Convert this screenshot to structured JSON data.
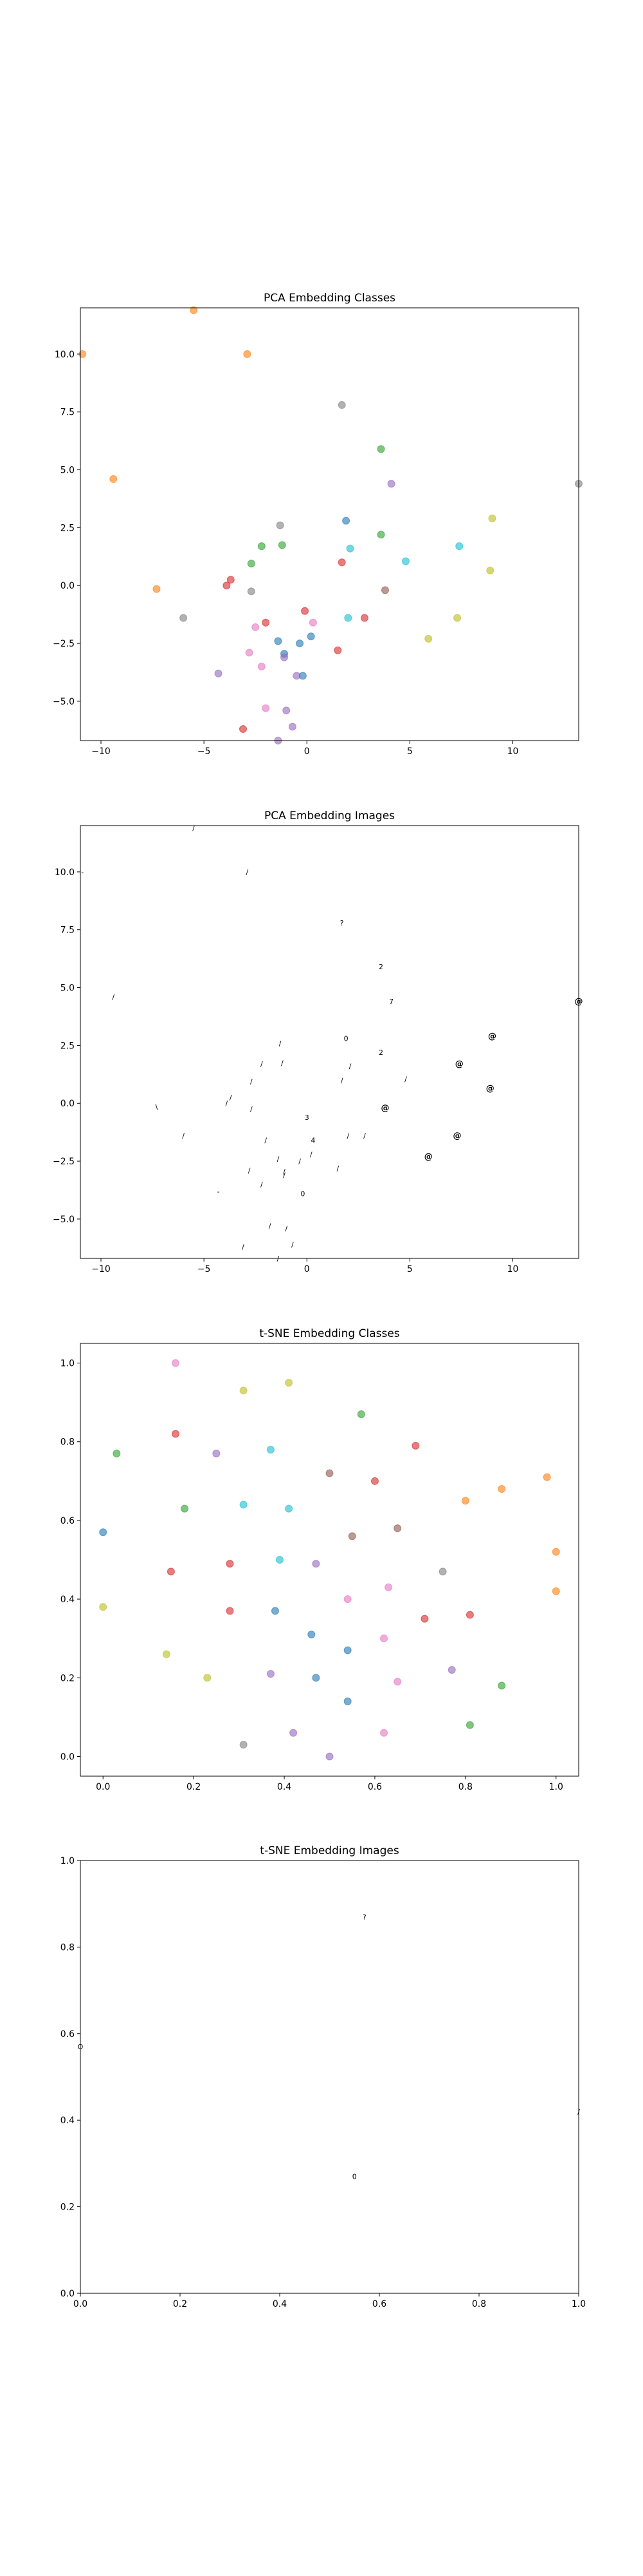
{
  "palette": [
    "#1f77b4",
    "#ff7f0e",
    "#2ca02c",
    "#d62728",
    "#9467bd",
    "#8c564b",
    "#e377c2",
    "#7f7f7f",
    "#bcbd22",
    "#17becf"
  ],
  "chart_data": [
    {
      "type": "scatter",
      "title": "PCA Embedding Classes",
      "xlim": [
        -11,
        13.2
      ],
      "ylim": [
        -6.7,
        12
      ],
      "xticks": [
        -10,
        -5,
        0,
        5,
        10
      ],
      "yticks": [
        -5.0,
        -2.5,
        0.0,
        2.5,
        5.0,
        7.5,
        10.0
      ],
      "ytick_labels": [
        "−5.0",
        "−2.5",
        "0.0",
        "2.5",
        "5.0",
        "7.5",
        "10.0"
      ],
      "xtick_labels": [
        "−10",
        "−5",
        "0",
        "5",
        "10"
      ],
      "points": [
        {
          "x": -5.5,
          "y": 11.9,
          "c": 1
        },
        {
          "x": -2.9,
          "y": 10.0,
          "c": 1
        },
        {
          "x": -10.9,
          "y": 10.0,
          "c": 1
        },
        {
          "x": -9.4,
          "y": 4.6,
          "c": 1
        },
        {
          "x": -7.3,
          "y": -0.15,
          "c": 1
        },
        {
          "x": 1.7,
          "y": 7.8,
          "c": 7
        },
        {
          "x": 3.6,
          "y": 5.9,
          "c": 2
        },
        {
          "x": 4.1,
          "y": 4.4,
          "c": 4
        },
        {
          "x": 13.2,
          "y": 4.4,
          "c": 7
        },
        {
          "x": 9.0,
          "y": 2.9,
          "c": 8
        },
        {
          "x": 1.9,
          "y": 2.8,
          "c": 0
        },
        {
          "x": -1.3,
          "y": 2.6,
          "c": 7
        },
        {
          "x": 3.6,
          "y": 2.2,
          "c": 2
        },
        {
          "x": -2.2,
          "y": 1.7,
          "c": 2
        },
        {
          "x": -1.2,
          "y": 1.75,
          "c": 2
        },
        {
          "x": 7.4,
          "y": 1.7,
          "c": 9
        },
        {
          "x": 2.1,
          "y": 1.6,
          "c": 9
        },
        {
          "x": 4.8,
          "y": 1.05,
          "c": 9
        },
        {
          "x": 1.7,
          "y": 1.0,
          "c": 3
        },
        {
          "x": -2.7,
          "y": 0.95,
          "c": 2
        },
        {
          "x": 8.9,
          "y": 0.65,
          "c": 8
        },
        {
          "x": -3.7,
          "y": 0.25,
          "c": 3
        },
        {
          "x": -3.9,
          "y": 0.0,
          "c": 3
        },
        {
          "x": 3.8,
          "y": -0.2,
          "c": 5
        },
        {
          "x": -2.7,
          "y": -0.25,
          "c": 7
        },
        {
          "x": -0.1,
          "y": -1.1,
          "c": 3
        },
        {
          "x": -6.0,
          "y": -1.4,
          "c": 7
        },
        {
          "x": 2.0,
          "y": -1.4,
          "c": 9
        },
        {
          "x": 2.8,
          "y": -1.4,
          "c": 3
        },
        {
          "x": 7.3,
          "y": -1.4,
          "c": 8
        },
        {
          "x": -2.0,
          "y": -1.6,
          "c": 3
        },
        {
          "x": 0.3,
          "y": -1.6,
          "c": 6
        },
        {
          "x": -2.5,
          "y": -1.8,
          "c": 6
        },
        {
          "x": 0.2,
          "y": -2.2,
          "c": 0
        },
        {
          "x": -0.35,
          "y": -2.5,
          "c": 0
        },
        {
          "x": 5.9,
          "y": -2.3,
          "c": 8
        },
        {
          "x": -1.4,
          "y": -2.4,
          "c": 0
        },
        {
          "x": -1.1,
          "y": -2.95,
          "c": 0
        },
        {
          "x": 1.5,
          "y": -2.8,
          "c": 3
        },
        {
          "x": -2.8,
          "y": -2.9,
          "c": 6
        },
        {
          "x": -1.1,
          "y": -3.1,
          "c": 4
        },
        {
          "x": -2.2,
          "y": -3.5,
          "c": 6
        },
        {
          "x": -4.3,
          "y": -3.8,
          "c": 4
        },
        {
          "x": -0.5,
          "y": -3.9,
          "c": 4
        },
        {
          "x": -0.2,
          "y": -3.9,
          "c": 0
        },
        {
          "x": -2.0,
          "y": -5.3,
          "c": 6
        },
        {
          "x": -1.0,
          "y": -5.4,
          "c": 4
        },
        {
          "x": -0.7,
          "y": -6.1,
          "c": 4
        },
        {
          "x": -3.1,
          "y": -6.2,
          "c": 3
        },
        {
          "x": -1.4,
          "y": -6.7,
          "c": 4
        }
      ]
    },
    {
      "type": "scatter",
      "title": "PCA Embedding Images",
      "xlim": [
        -11,
        13.2
      ],
      "ylim": [
        -6.7,
        12
      ],
      "xticks": [
        -10,
        -5,
        0,
        5,
        10
      ],
      "yticks": [
        -5.0,
        -2.5,
        0.0,
        2.5,
        5.0,
        7.5,
        10.0
      ],
      "ytick_labels": [
        "−5.0",
        "−2.5",
        "0.0",
        "2.5",
        "5.0",
        "7.5",
        "10.0"
      ],
      "xtick_labels": [
        "−10",
        "−5",
        "0",
        "5",
        "10"
      ],
      "glyphs": [
        {
          "x": -5.5,
          "y": 11.9,
          "t": "/"
        },
        {
          "x": -2.9,
          "y": 10.0,
          "t": "/"
        },
        {
          "x": -10.9,
          "y": 10.0,
          "t": "-"
        },
        {
          "x": -9.4,
          "y": 4.6,
          "t": "/"
        },
        {
          "x": -7.3,
          "y": -0.15,
          "t": "\\"
        },
        {
          "x": 1.7,
          "y": 7.8,
          "t": "?"
        },
        {
          "x": 3.6,
          "y": 5.9,
          "t": "2"
        },
        {
          "x": 4.1,
          "y": 4.4,
          "t": "7"
        },
        {
          "x": 13.2,
          "y": 4.4,
          "t": "@"
        },
        {
          "x": 9.0,
          "y": 2.9,
          "t": "@"
        },
        {
          "x": 1.9,
          "y": 2.8,
          "t": "0"
        },
        {
          "x": -1.3,
          "y": 2.6,
          "t": "/"
        },
        {
          "x": 3.6,
          "y": 2.2,
          "t": "2"
        },
        {
          "x": -2.2,
          "y": 1.7,
          "t": "/"
        },
        {
          "x": -1.2,
          "y": 1.75,
          "t": "/"
        },
        {
          "x": 7.4,
          "y": 1.7,
          "t": "@"
        },
        {
          "x": 2.1,
          "y": 1.6,
          "t": "/"
        },
        {
          "x": 4.8,
          "y": 1.05,
          "t": "/"
        },
        {
          "x": 1.7,
          "y": 1.0,
          "t": "/"
        },
        {
          "x": -2.7,
          "y": 0.95,
          "t": "/"
        },
        {
          "x": 8.9,
          "y": 0.65,
          "t": "@"
        },
        {
          "x": -3.7,
          "y": 0.25,
          "t": "/"
        },
        {
          "x": -3.9,
          "y": 0.0,
          "t": "/"
        },
        {
          "x": 3.8,
          "y": -0.2,
          "t": "@"
        },
        {
          "x": -2.7,
          "y": -0.25,
          "t": "/"
        },
        {
          "x": 0.0,
          "y": -0.6,
          "t": "3"
        },
        {
          "x": -6.0,
          "y": -1.4,
          "t": "/"
        },
        {
          "x": 2.0,
          "y": -1.4,
          "t": "/"
        },
        {
          "x": 2.8,
          "y": -1.4,
          "t": "/"
        },
        {
          "x": 7.3,
          "y": -1.4,
          "t": "@"
        },
        {
          "x": -2.0,
          "y": -1.6,
          "t": "/"
        },
        {
          "x": 0.3,
          "y": -1.6,
          "t": "4"
        },
        {
          "x": 0.2,
          "y": -2.2,
          "t": "/"
        },
        {
          "x": -0.35,
          "y": -2.5,
          "t": "/"
        },
        {
          "x": 5.9,
          "y": -2.3,
          "t": "@"
        },
        {
          "x": -1.4,
          "y": -2.4,
          "t": "/"
        },
        {
          "x": -1.1,
          "y": -2.95,
          "t": "/"
        },
        {
          "x": 1.5,
          "y": -2.8,
          "t": "/"
        },
        {
          "x": -2.8,
          "y": -2.9,
          "t": "/"
        },
        {
          "x": -1.1,
          "y": -3.1,
          "t": "/"
        },
        {
          "x": -2.2,
          "y": -3.5,
          "t": "/"
        },
        {
          "x": -4.3,
          "y": -3.8,
          "t": "-"
        },
        {
          "x": -0.2,
          "y": -3.9,
          "t": "0"
        },
        {
          "x": -1.8,
          "y": -5.3,
          "t": "/"
        },
        {
          "x": -1.0,
          "y": -5.4,
          "t": "/"
        },
        {
          "x": -0.7,
          "y": -6.1,
          "t": "/"
        },
        {
          "x": -3.1,
          "y": -6.2,
          "t": "/"
        },
        {
          "x": -1.4,
          "y": -6.7,
          "t": "/"
        }
      ]
    },
    {
      "type": "scatter",
      "title": "t-SNE Embedding Classes",
      "xlim": [
        -0.05,
        1.05
      ],
      "ylim": [
        -0.05,
        1.05
      ],
      "xticks": [
        0.0,
        0.2,
        0.4,
        0.6,
        0.8,
        1.0
      ],
      "yticks": [
        0.0,
        0.2,
        0.4,
        0.6,
        0.8,
        1.0
      ],
      "xtick_labels": [
        "0.0",
        "0.2",
        "0.4",
        "0.6",
        "0.8",
        "1.0"
      ],
      "ytick_labels": [
        "0.0",
        "0.2",
        "0.4",
        "0.6",
        "0.8",
        "1.0"
      ],
      "points": [
        {
          "x": 0.16,
          "y": 1.0,
          "c": 6
        },
        {
          "x": 0.41,
          "y": 0.95,
          "c": 8
        },
        {
          "x": 0.31,
          "y": 0.93,
          "c": 8
        },
        {
          "x": 0.57,
          "y": 0.87,
          "c": 2
        },
        {
          "x": 0.16,
          "y": 0.82,
          "c": 3
        },
        {
          "x": 0.69,
          "y": 0.79,
          "c": 3
        },
        {
          "x": 0.37,
          "y": 0.78,
          "c": 9
        },
        {
          "x": 0.25,
          "y": 0.77,
          "c": 4
        },
        {
          "x": 0.03,
          "y": 0.77,
          "c": 2
        },
        {
          "x": 0.5,
          "y": 0.72,
          "c": 5
        },
        {
          "x": 0.98,
          "y": 0.71,
          "c": 1
        },
        {
          "x": 0.6,
          "y": 0.7,
          "c": 3
        },
        {
          "x": 0.88,
          "y": 0.68,
          "c": 1
        },
        {
          "x": 0.8,
          "y": 0.65,
          "c": 1
        },
        {
          "x": 0.31,
          "y": 0.64,
          "c": 9
        },
        {
          "x": 0.18,
          "y": 0.63,
          "c": 2
        },
        {
          "x": 0.41,
          "y": 0.63,
          "c": 9
        },
        {
          "x": 0.65,
          "y": 0.58,
          "c": 5
        },
        {
          "x": 0.0,
          "y": 0.57,
          "c": 0
        },
        {
          "x": 0.55,
          "y": 0.56,
          "c": 5
        },
        {
          "x": 1.0,
          "y": 0.52,
          "c": 1
        },
        {
          "x": 0.39,
          "y": 0.5,
          "c": 9
        },
        {
          "x": 0.28,
          "y": 0.49,
          "c": 3
        },
        {
          "x": 0.47,
          "y": 0.49,
          "c": 4
        },
        {
          "x": 0.15,
          "y": 0.47,
          "c": 3
        },
        {
          "x": 0.75,
          "y": 0.47,
          "c": 7
        },
        {
          "x": 0.63,
          "y": 0.43,
          "c": 6
        },
        {
          "x": 1.0,
          "y": 0.42,
          "c": 1
        },
        {
          "x": 0.54,
          "y": 0.4,
          "c": 6
        },
        {
          "x": 0.0,
          "y": 0.38,
          "c": 8
        },
        {
          "x": 0.38,
          "y": 0.37,
          "c": 0
        },
        {
          "x": 0.28,
          "y": 0.37,
          "c": 3
        },
        {
          "x": 0.71,
          "y": 0.35,
          "c": 3
        },
        {
          "x": 0.81,
          "y": 0.36,
          "c": 3
        },
        {
          "x": 0.46,
          "y": 0.31,
          "c": 0
        },
        {
          "x": 0.62,
          "y": 0.3,
          "c": 6
        },
        {
          "x": 0.54,
          "y": 0.27,
          "c": 0
        },
        {
          "x": 0.14,
          "y": 0.26,
          "c": 8
        },
        {
          "x": 0.77,
          "y": 0.22,
          "c": 4
        },
        {
          "x": 0.37,
          "y": 0.21,
          "c": 4
        },
        {
          "x": 0.23,
          "y": 0.2,
          "c": 8
        },
        {
          "x": 0.47,
          "y": 0.2,
          "c": 0
        },
        {
          "x": 0.65,
          "y": 0.19,
          "c": 6
        },
        {
          "x": 0.88,
          "y": 0.18,
          "c": 2
        },
        {
          "x": 0.54,
          "y": 0.14,
          "c": 0
        },
        {
          "x": 0.81,
          "y": 0.08,
          "c": 2
        },
        {
          "x": 0.42,
          "y": 0.06,
          "c": 4
        },
        {
          "x": 0.62,
          "y": 0.06,
          "c": 6
        },
        {
          "x": 0.31,
          "y": 0.03,
          "c": 7
        },
        {
          "x": 0.5,
          "y": 0.0,
          "c": 4
        }
      ]
    },
    {
      "type": "scatter",
      "title": "t-SNE Embedding Images",
      "xlim": [
        0.0,
        1.0
      ],
      "ylim": [
        0.0,
        1.0
      ],
      "xticks": [
        0.0,
        0.2,
        0.4,
        0.6,
        0.8,
        1.0
      ],
      "yticks": [
        0.0,
        0.2,
        0.4,
        0.6,
        0.8,
        1.0
      ],
      "xtick_labels": [
        "0.0",
        "0.2",
        "0.4",
        "0.6",
        "0.8",
        "1.0"
      ],
      "ytick_labels": [
        "0.0",
        "0.2",
        "0.4",
        "0.6",
        "0.8",
        "1.0"
      ],
      "glyphs": [
        {
          "x": 0.57,
          "y": 0.87,
          "t": "?"
        },
        {
          "x": 0.0,
          "y": 0.57,
          "t": "O"
        },
        {
          "x": 1.0,
          "y": 0.42,
          "t": "/"
        },
        {
          "x": 0.55,
          "y": 0.27,
          "t": "0"
        }
      ]
    }
  ]
}
